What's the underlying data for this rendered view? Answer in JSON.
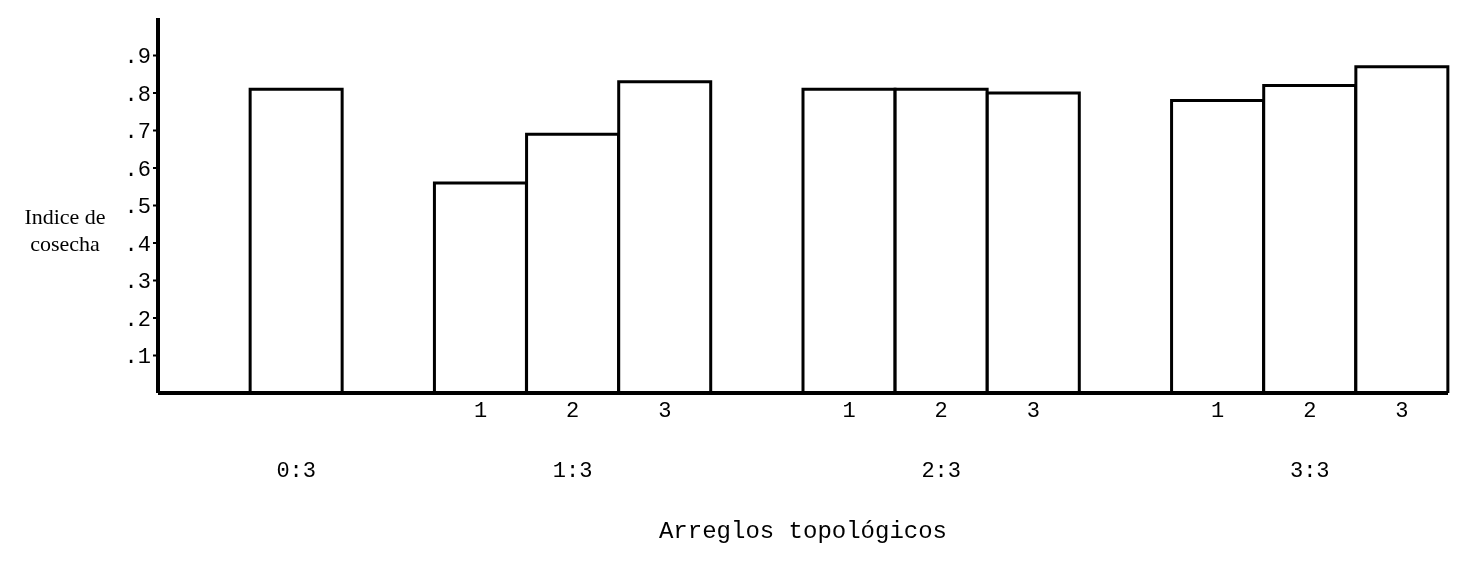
{
  "chart_data": {
    "type": "bar",
    "xlabel": "Arreglos topológicos",
    "ylabel": "Indice de cosecha",
    "categories": [
      null,
      null,
      null,
      "1",
      "2",
      "3",
      null,
      "1",
      "2",
      "3",
      null,
      "1",
      "2",
      "3"
    ],
    "series": [
      {
        "color": "#ffffff",
        "values": [
          null,
          0.81,
          null,
          0.56,
          0.69,
          0.83,
          null,
          0.81,
          0.81,
          0.8,
          null,
          0.78,
          0.82,
          0.87
        ]
      }
    ],
    "annotations": [
      "0:3",
      "1:3",
      "2:3",
      "3:3"
    ],
    "ylim": [
      0,
      1
    ],
    "yticks": [
      {
        "value": 0.1,
        "label": ".1"
      },
      {
        "value": 0.2,
        "label": ".2"
      },
      {
        "value": 0.3,
        "label": ".3"
      },
      {
        "value": 0.4,
        "label": ".4"
      },
      {
        "value": 0.5,
        "label": ".5"
      },
      {
        "value": 0.6,
        "label": ".6"
      },
      {
        "value": 0.7,
        "label": ".7"
      },
      {
        "value": 0.8,
        "label": ".8"
      },
      {
        "value": 0.9,
        "label": ".9"
      }
    ],
    "grid": false,
    "legend": false
  }
}
